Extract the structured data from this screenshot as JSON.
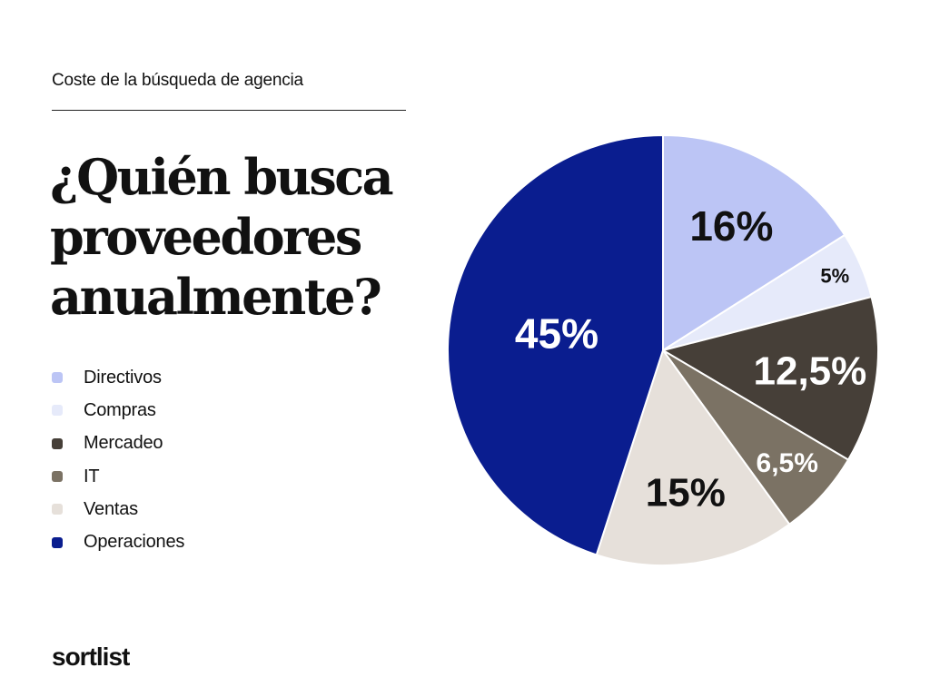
{
  "header": {
    "eyebrow": "Coste de la búsqueda de agencia"
  },
  "headline": {
    "line1": "¿Quién busca",
    "line2": "proveedores",
    "line3": "anualmente?"
  },
  "brand": {
    "logo_text": "sortlist"
  },
  "chart_data": {
    "type": "pie",
    "title": "¿Quién busca proveedores anualmente?",
    "labels": [
      "Directivos",
      "Compras",
      "Mercadeo",
      "IT",
      "Ventas",
      "Operaciones"
    ],
    "values": [
      16,
      5,
      12.5,
      6.5,
      15,
      45
    ],
    "data_labels": [
      "16%",
      "5%",
      "12,5%",
      "6,5%",
      "15%",
      "45%"
    ],
    "colors": [
      "#BCC5F5",
      "#E6EAFA",
      "#463F38",
      "#7B7264",
      "#E6E0DA",
      "#0A1D8F"
    ],
    "label_colors": [
      "#111111",
      "#111111",
      "#FFFFFF",
      "#FFFFFF",
      "#111111",
      "#FFFFFF"
    ],
    "start_angle_deg": 0,
    "direction": "clockwise",
    "legend_position": "left"
  }
}
